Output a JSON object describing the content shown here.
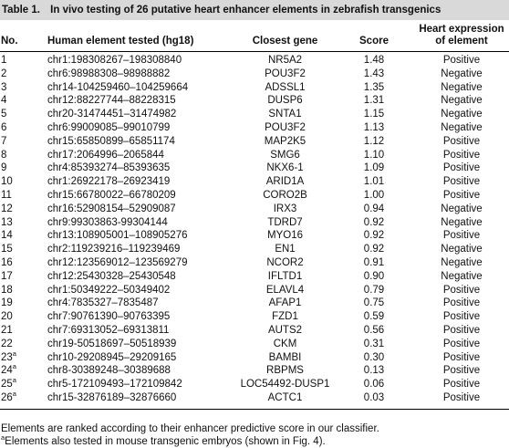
{
  "caption": {
    "label": "Table 1.",
    "title": "In vivo testing of 26 putative heart enhancer elements in zebrafish transgenics"
  },
  "headers": {
    "no": "No.",
    "element": "Human element tested (hg18)",
    "gene": "Closest gene",
    "score": "Score",
    "heart": "Heart expression of element"
  },
  "rows": [
    {
      "no": "1",
      "sup": "",
      "element": "chr1:198308267–198308840",
      "gene": "NR5A2",
      "score": "1.48",
      "heart": "Positive"
    },
    {
      "no": "2",
      "sup": "",
      "element": "chr6:98988308–98988882",
      "gene": "POU3F2",
      "score": "1.43",
      "heart": "Negative"
    },
    {
      "no": "3",
      "sup": "",
      "element": "chr14-104259460–104259664",
      "gene": "ADSSL1",
      "score": "1.35",
      "heart": "Negative"
    },
    {
      "no": "4",
      "sup": "",
      "element": "chr12:88227744–88228315",
      "gene": "DUSP6",
      "score": "1.31",
      "heart": "Negative"
    },
    {
      "no": "5",
      "sup": "",
      "element": "chr20-31474451–31474982",
      "gene": "SNTA1",
      "score": "1.15",
      "heart": "Negative"
    },
    {
      "no": "6",
      "sup": "",
      "element": "chr6:99009085–99010799",
      "gene": "POU3F2",
      "score": "1.13",
      "heart": "Negative"
    },
    {
      "no": "7",
      "sup": "",
      "element": "chr15:65850899–65851174",
      "gene": "MAP2K5",
      "score": "1.12",
      "heart": "Positive"
    },
    {
      "no": "8",
      "sup": "",
      "element": "chr17:2064996–2065844",
      "gene": "SMG6",
      "score": "1.10",
      "heart": "Positive"
    },
    {
      "no": "9",
      "sup": "",
      "element": "chr4:85393274–85393635",
      "gene": "NKX6-1",
      "score": "1.09",
      "heart": "Positive"
    },
    {
      "no": "10",
      "sup": "",
      "element": "chr1:26922178–26923419",
      "gene": "ARID1A",
      "score": "1.01",
      "heart": "Positive"
    },
    {
      "no": "11",
      "sup": "",
      "element": "chr15:66780022–66780209",
      "gene": "CORO2B",
      "score": "1.00",
      "heart": "Positive"
    },
    {
      "no": "12",
      "sup": "",
      "element": "chr16:52908154–52909087",
      "gene": "IRX3",
      "score": "0.94",
      "heart": "Negative"
    },
    {
      "no": "13",
      "sup": "",
      "element": "chr9:99303863-99304144",
      "gene": "TDRD7",
      "score": "0.92",
      "heart": "Negative"
    },
    {
      "no": "14",
      "sup": "",
      "element": "chr13:108905001–108905276",
      "gene": "MYO16",
      "score": "0.92",
      "heart": "Positive"
    },
    {
      "no": "15",
      "sup": "",
      "element": "chr2:119239216–119239469",
      "gene": "EN1",
      "score": "0.92",
      "heart": "Negative"
    },
    {
      "no": "16",
      "sup": "",
      "element": "chr12:123569012–123569279",
      "gene": "NCOR2",
      "score": "0.91",
      "heart": "Negative"
    },
    {
      "no": "17",
      "sup": "",
      "element": "chr12:25430328–25430548",
      "gene": "IFLTD1",
      "score": "0.90",
      "heart": "Negative"
    },
    {
      "no": "18",
      "sup": "",
      "element": "chr1:50349222–50349402",
      "gene": "ELAVL4",
      "score": "0.79",
      "heart": "Positive"
    },
    {
      "no": "19",
      "sup": "",
      "element": "chr4:7835327–7835487",
      "gene": "AFAP1",
      "score": "0.75",
      "heart": "Positive"
    },
    {
      "no": "20",
      "sup": "",
      "element": "chr7:90761390–90763395",
      "gene": "FZD1",
      "score": "0.59",
      "heart": "Positive"
    },
    {
      "no": "21",
      "sup": "",
      "element": "chr7:69313052–69313811",
      "gene": "AUTS2",
      "score": "0.56",
      "heart": "Positive"
    },
    {
      "no": "22",
      "sup": "",
      "element": "chr19-50518697–50518939",
      "gene": "CKM",
      "score": "0.31",
      "heart": "Positive"
    },
    {
      "no": "23",
      "sup": "a",
      "element": "chr10-29208945–29209165",
      "gene": "BAMBI",
      "score": "0.30",
      "heart": "Positive"
    },
    {
      "no": "24",
      "sup": "a",
      "element": "chr8-30389248–30389688",
      "gene": "RBPMS",
      "score": "0.13",
      "heart": "Positive"
    },
    {
      "no": "25",
      "sup": "a",
      "element": "chr5-172109493–172109842",
      "gene": "LOC54492-DUSP1",
      "score": "0.06",
      "heart": "Positive"
    },
    {
      "no": "26",
      "sup": "a",
      "element": "chr15-32876189–32876660",
      "gene": "ACTC1",
      "score": "0.03",
      "heart": "Positive"
    }
  ],
  "footnotes": {
    "main": "Elements are ranked according to their enhancer predictive score in our classifier.",
    "a_mark": "a",
    "a_text": "Elements also tested in mouse transgenic embryos (shown in Fig. 4)."
  }
}
